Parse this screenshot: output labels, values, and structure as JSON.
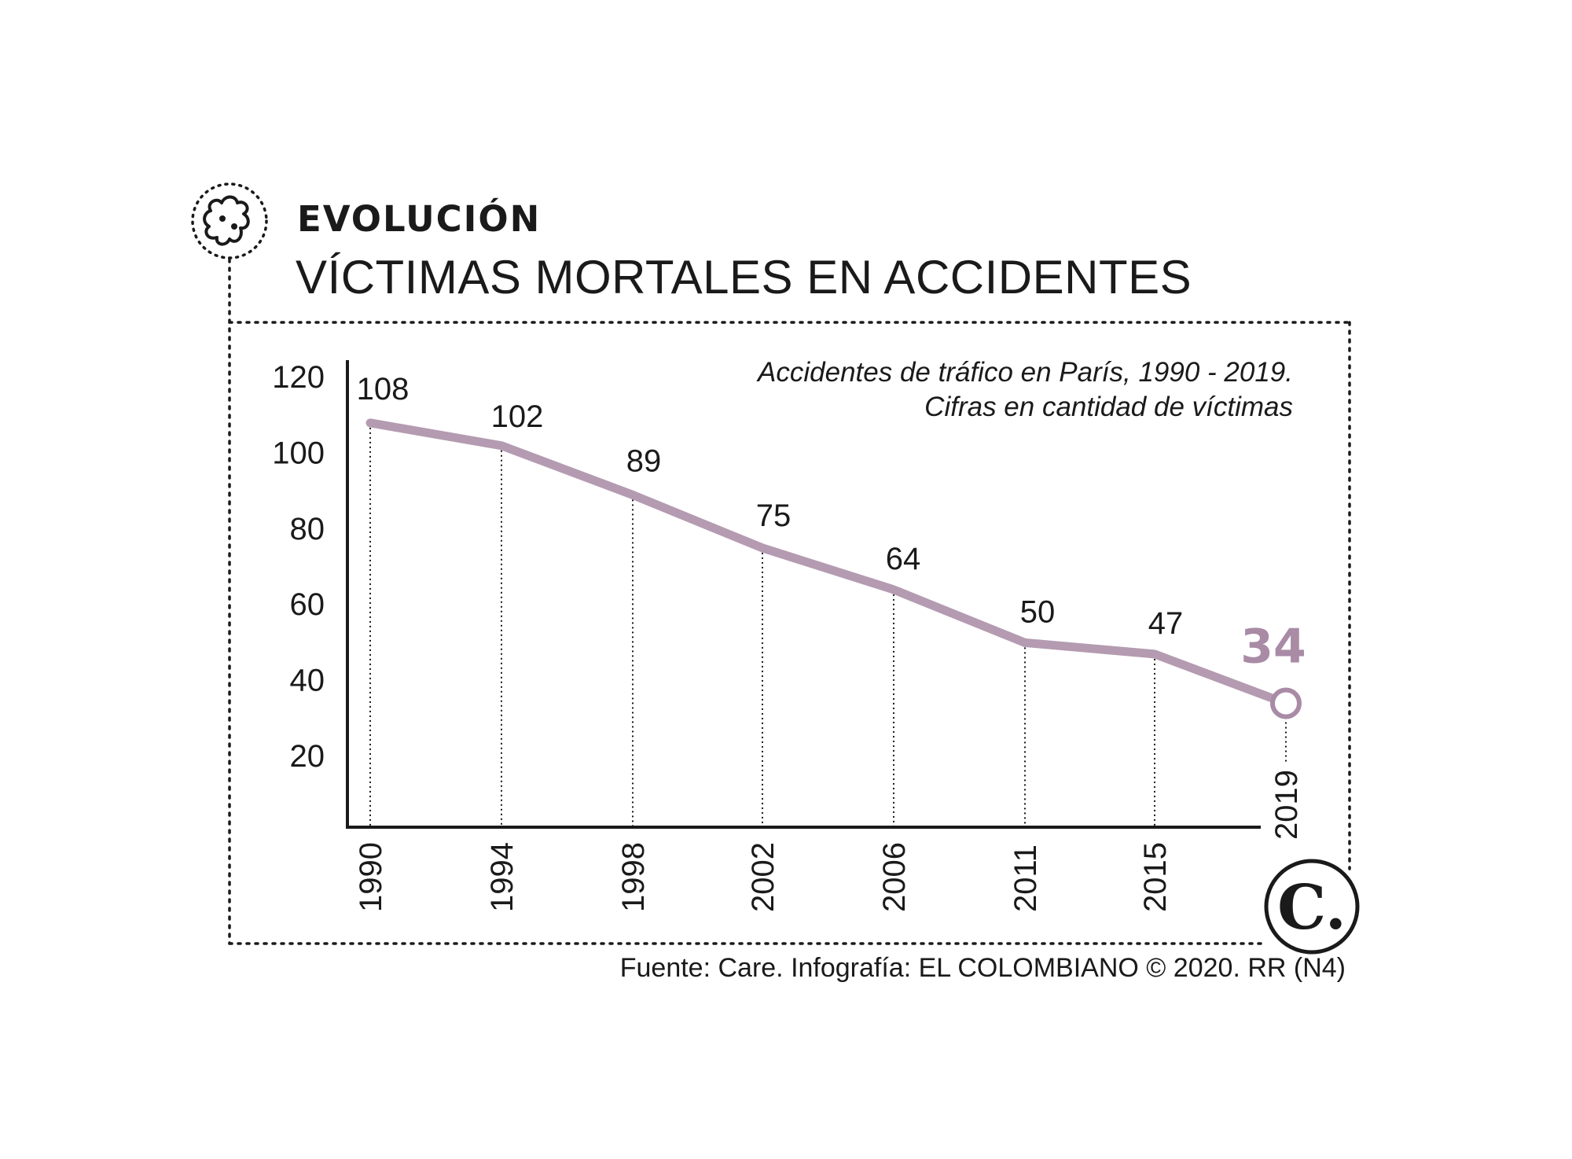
{
  "header": {
    "kicker": "EVOLUCIÓN",
    "title": "VÍCTIMAS MORTALES EN ACCIDENTES",
    "subtitle_line1": "Accidentes de tráfico en París, 1990 - 2019.",
    "subtitle_line2": "Cifras en cantidad de víctimas",
    "source": "Fuente: Care. Infografía: EL COLOMBIANO © 2020. RR (N4)",
    "brand_mark": "C."
  },
  "colors": {
    "line": "#b49bb1",
    "highlight": "#a98ba6",
    "text": "#1a1a1a"
  },
  "icons": [
    "bacteria-icon"
  ],
  "chart_data": {
    "type": "line",
    "x": [
      "1990",
      "1994",
      "1998",
      "2002",
      "2006",
      "2011",
      "2015",
      "2019"
    ],
    "values": [
      108,
      102,
      89,
      75,
      64,
      50,
      47,
      34
    ],
    "value_labels": [
      "108",
      "102",
      "89",
      "75",
      "64",
      "50",
      "47",
      "34"
    ],
    "highlight_last": true,
    "yticks": [
      "120",
      "100",
      "80",
      "60",
      "40",
      "20"
    ],
    "ylim": [
      0,
      120
    ],
    "xlabel": "",
    "ylabel": "",
    "grid": "vertical dotted drop lines"
  }
}
